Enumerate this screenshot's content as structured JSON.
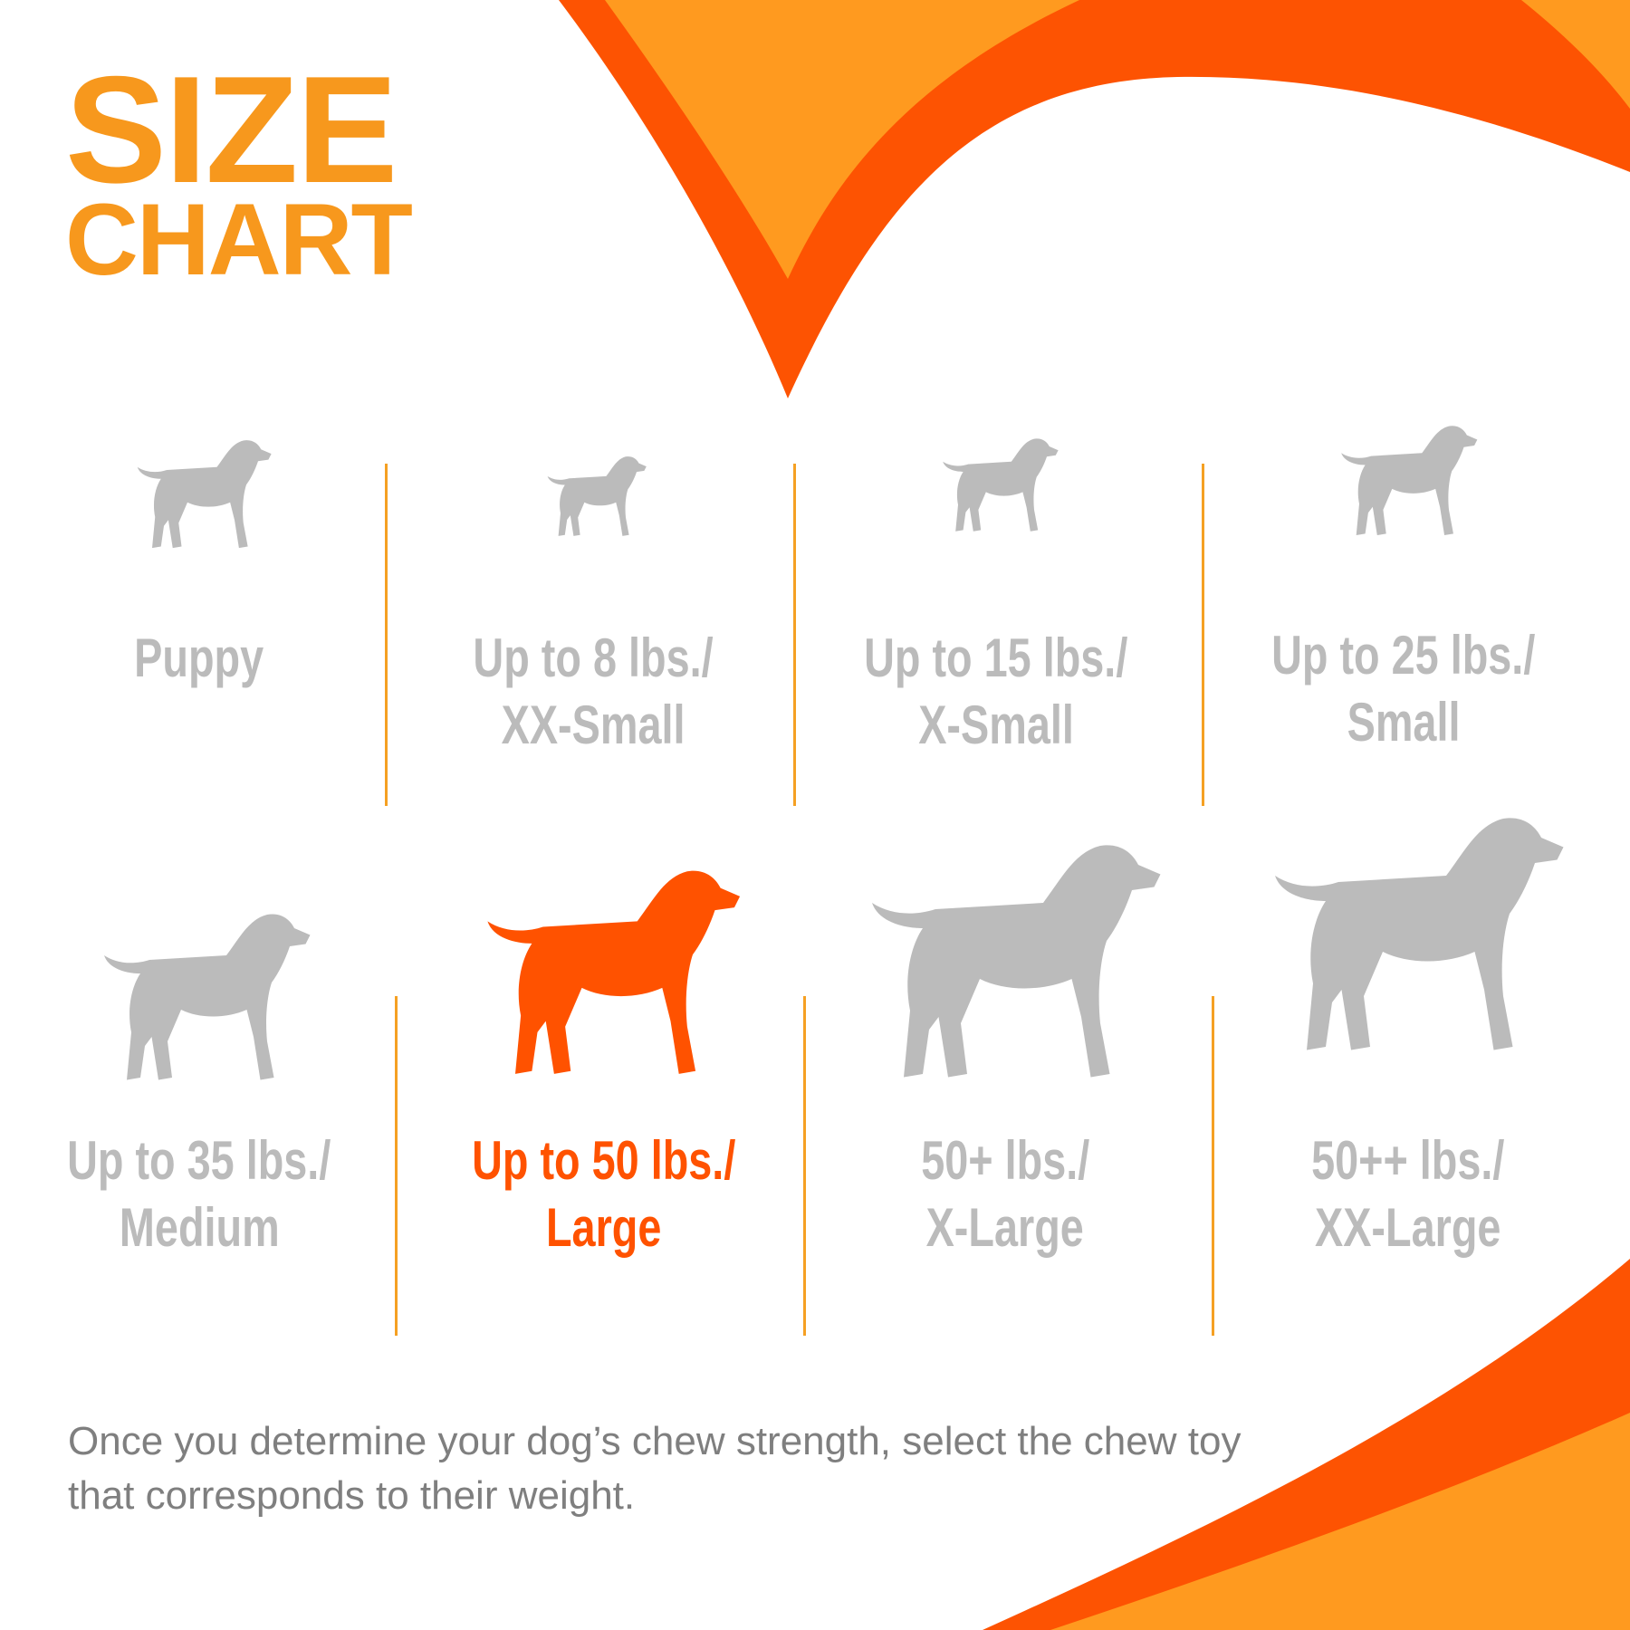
{
  "title": {
    "line1": "SIZE",
    "line2": "CHART"
  },
  "colors": {
    "orange": "#F7981D",
    "red_orange": "#FF5200",
    "gray": "#BBBBBB",
    "divider": "#F5A023"
  },
  "sizes": [
    {
      "line1": "Puppy",
      "line2": "",
      "icon": "puppy-silhouette-icon",
      "highlighted": false
    },
    {
      "line1": "Up to 8 lbs./",
      "line2": "XX-Small",
      "icon": "chihuahua-silhouette-icon",
      "highlighted": false
    },
    {
      "line1": "Up to 15 lbs./",
      "line2": "X-Small",
      "icon": "small-dog-silhouette-icon",
      "highlighted": false
    },
    {
      "line1": "Up to 25 lbs./",
      "line2": "Small",
      "icon": "terrier-silhouette-icon",
      "highlighted": false
    },
    {
      "line1": "Up to 35 lbs./",
      "line2": "Medium",
      "icon": "beagle-silhouette-icon",
      "highlighted": false
    },
    {
      "line1": "Up to 50 lbs./",
      "line2": "Large",
      "icon": "retriever-silhouette-icon",
      "highlighted": true
    },
    {
      "line1": "50+ lbs./",
      "line2": "X-Large",
      "icon": "shepherd-silhouette-icon",
      "highlighted": false
    },
    {
      "line1": "50++ lbs./",
      "line2": "XX-Large",
      "icon": "great-dane-silhouette-icon",
      "highlighted": false
    }
  ],
  "footer": {
    "text": "Once you determine your dog’s chew strength, select the chew toy that corresponds to their weight."
  }
}
